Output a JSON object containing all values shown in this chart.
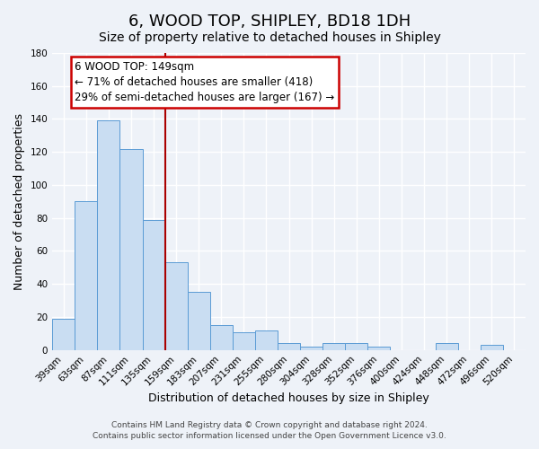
{
  "title": "6, WOOD TOP, SHIPLEY, BD18 1DH",
  "subtitle": "Size of property relative to detached houses in Shipley",
  "xlabel": "Distribution of detached houses by size in Shipley",
  "ylabel": "Number of detached properties",
  "bar_labels": [
    "39sqm",
    "63sqm",
    "87sqm",
    "111sqm",
    "135sqm",
    "159sqm",
    "183sqm",
    "207sqm",
    "231sqm",
    "255sqm",
    "280sqm",
    "304sqm",
    "328sqm",
    "352sqm",
    "376sqm",
    "400sqm",
    "424sqm",
    "448sqm",
    "472sqm",
    "496sqm",
    "520sqm"
  ],
  "bar_values": [
    19,
    90,
    139,
    122,
    79,
    53,
    35,
    15,
    11,
    12,
    4,
    2,
    4,
    4,
    2,
    0,
    0,
    4,
    0,
    3,
    0
  ],
  "bar_color": "#c9ddf2",
  "bar_edge_color": "#5b9bd5",
  "vline_color": "#aa0000",
  "ylim": [
    0,
    180
  ],
  "yticks": [
    0,
    20,
    40,
    60,
    80,
    100,
    120,
    140,
    160,
    180
  ],
  "annotation_text": "6 WOOD TOP: 149sqm\n← 71% of detached houses are smaller (418)\n29% of semi-detached houses are larger (167) →",
  "annotation_box_facecolor": "#ffffff",
  "annotation_box_edgecolor": "#cc0000",
  "footer_line1": "Contains HM Land Registry data © Crown copyright and database right 2024.",
  "footer_line2": "Contains public sector information licensed under the Open Government Licence v3.0.",
  "background_color": "#eef2f8",
  "grid_color": "#ffffff",
  "title_fontsize": 13,
  "subtitle_fontsize": 10,
  "xlabel_fontsize": 9,
  "ylabel_fontsize": 9,
  "tick_fontsize": 7.5,
  "annot_fontsize": 8.5,
  "footer_fontsize": 6.5
}
